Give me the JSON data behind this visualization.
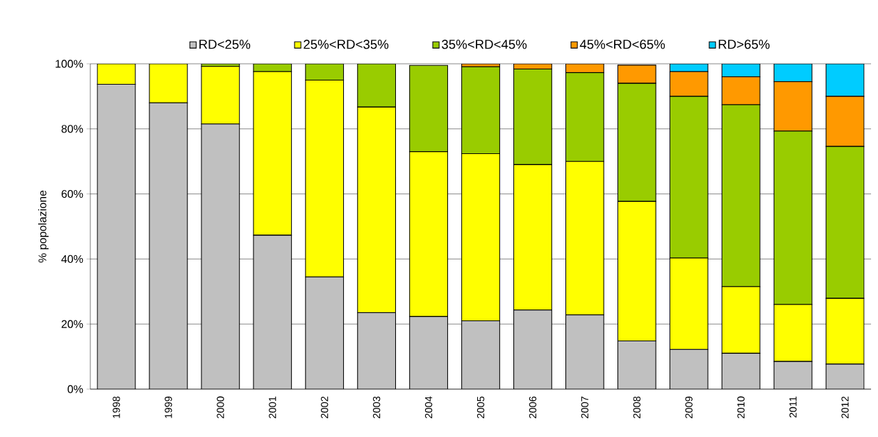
{
  "chart_data": {
    "type": "bar",
    "stacked": true,
    "ylabel": "% popolazione",
    "legend": "top",
    "grid": "y",
    "categories": [
      "1998",
      "1999",
      "2000",
      "2001",
      "2002",
      "2003",
      "2004",
      "2005",
      "2006",
      "2007",
      "2008",
      "2009",
      "2010",
      "2011",
      "2012"
    ],
    "ylim": [
      0,
      100
    ],
    "yticks": [
      {
        "value": 0,
        "label": "0%"
      },
      {
        "value": 20,
        "label": "20%"
      },
      {
        "value": 40,
        "label": "40%"
      },
      {
        "value": 60,
        "label": "60%"
      },
      {
        "value": 80,
        "label": "80%"
      },
      {
        "value": 100,
        "label": "100%"
      }
    ],
    "series": [
      {
        "name": "RD<25%",
        "color": "#c0c0c0",
        "values": [
          93.7,
          88,
          81.5,
          47.3,
          34.5,
          23.5,
          22.3,
          21,
          24.3,
          22.8,
          14.8,
          12.2,
          11,
          8.5,
          7.7
        ]
      },
      {
        "name": "25%<RD<35%",
        "color": "#ffff00",
        "values": [
          6.3,
          12,
          17.7,
          50.3,
          60.5,
          63.2,
          50.7,
          51.4,
          44.7,
          47.2,
          42.9,
          28.1,
          20.5,
          17.5,
          20.2
        ]
      },
      {
        "name": "35%<RD<45%",
        "color": "#99cc00",
        "values": [
          0,
          0,
          0.8,
          2.4,
          5,
          13.3,
          26.5,
          26.7,
          29.4,
          27.3,
          36.3,
          49.7,
          55.9,
          53.3,
          46.7
        ]
      },
      {
        "name": "45%<RD<65%",
        "color": "#ff9900",
        "values": [
          0,
          0,
          0,
          0,
          0,
          0,
          null,
          0.9,
          1.6,
          2.7,
          5.6,
          7.6,
          8.6,
          15.2,
          15.4
        ]
      },
      {
        "name": "RD>65%",
        "color": "#00ccff",
        "values": [
          0,
          0,
          0,
          0,
          0,
          0,
          0,
          0,
          0,
          0,
          null,
          2.4,
          4,
          5.5,
          10
        ]
      }
    ]
  }
}
